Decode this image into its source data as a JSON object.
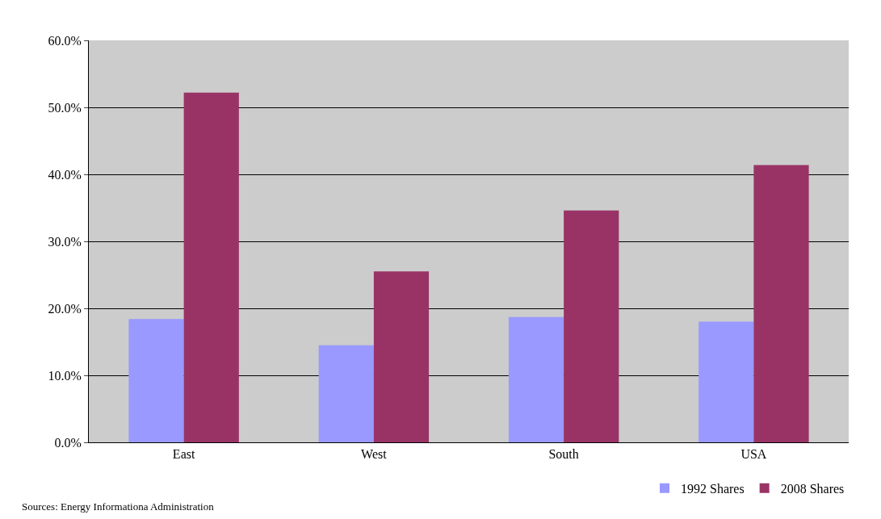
{
  "chart_data": {
    "type": "bar",
    "categories": [
      "East",
      "West",
      "South",
      "USA"
    ],
    "series": [
      {
        "name": "1992 Shares",
        "color": "#9999ff",
        "values": [
          18.4,
          14.5,
          18.7,
          18.0
        ]
      },
      {
        "name": "2008 Shares",
        "color": "#993366",
        "values": [
          52.2,
          25.5,
          34.6,
          41.4
        ]
      }
    ],
    "ylim": [
      0,
      60
    ],
    "yticks": [
      {
        "value": 0,
        "label": "0.0%"
      },
      {
        "value": 10,
        "label": "10.0%"
      },
      {
        "value": 20,
        "label": "20.0%"
      },
      {
        "value": 30,
        "label": "30.0%"
      },
      {
        "value": 40,
        "label": "40.0%"
      },
      {
        "value": 50,
        "label": "50.0%"
      },
      {
        "value": 60,
        "label": "60.0%"
      }
    ],
    "grid": "y",
    "legend": "bottom right",
    "annotations": [
      "Sources: Energy Informationa Administration"
    ]
  }
}
